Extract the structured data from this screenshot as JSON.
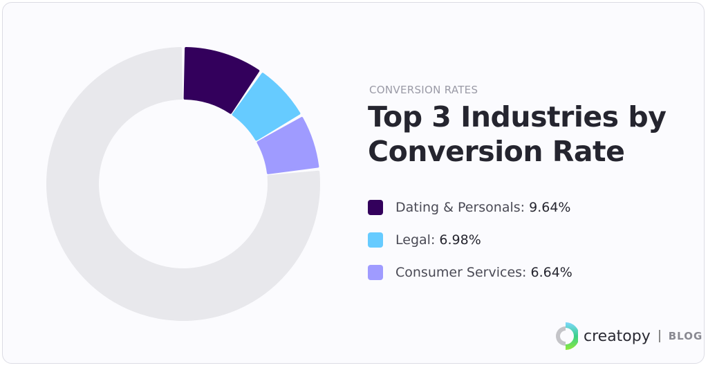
{
  "chart_data": {
    "type": "pie",
    "variant": "donut",
    "eyebrow": "CONVERSION RATES",
    "title": "Top 3 Industries by Conversion Rate",
    "title_lines": [
      "Top 3 Industries by",
      "Conversion Rate"
    ],
    "unit": "%",
    "slices": [
      {
        "name": "Dating & Personals",
        "value": 9.64,
        "color": "#33005c"
      },
      {
        "name": "Legal",
        "value": 6.98,
        "color": "#66cbff"
      },
      {
        "name": "Consumer Services",
        "value": 6.64,
        "color": "#9f9bff"
      }
    ],
    "remainder": {
      "value": 76.74,
      "color": "#e8e8ec"
    },
    "legend_placement": "right"
  },
  "branding": {
    "name": "creatopy",
    "section": "BLOG"
  }
}
